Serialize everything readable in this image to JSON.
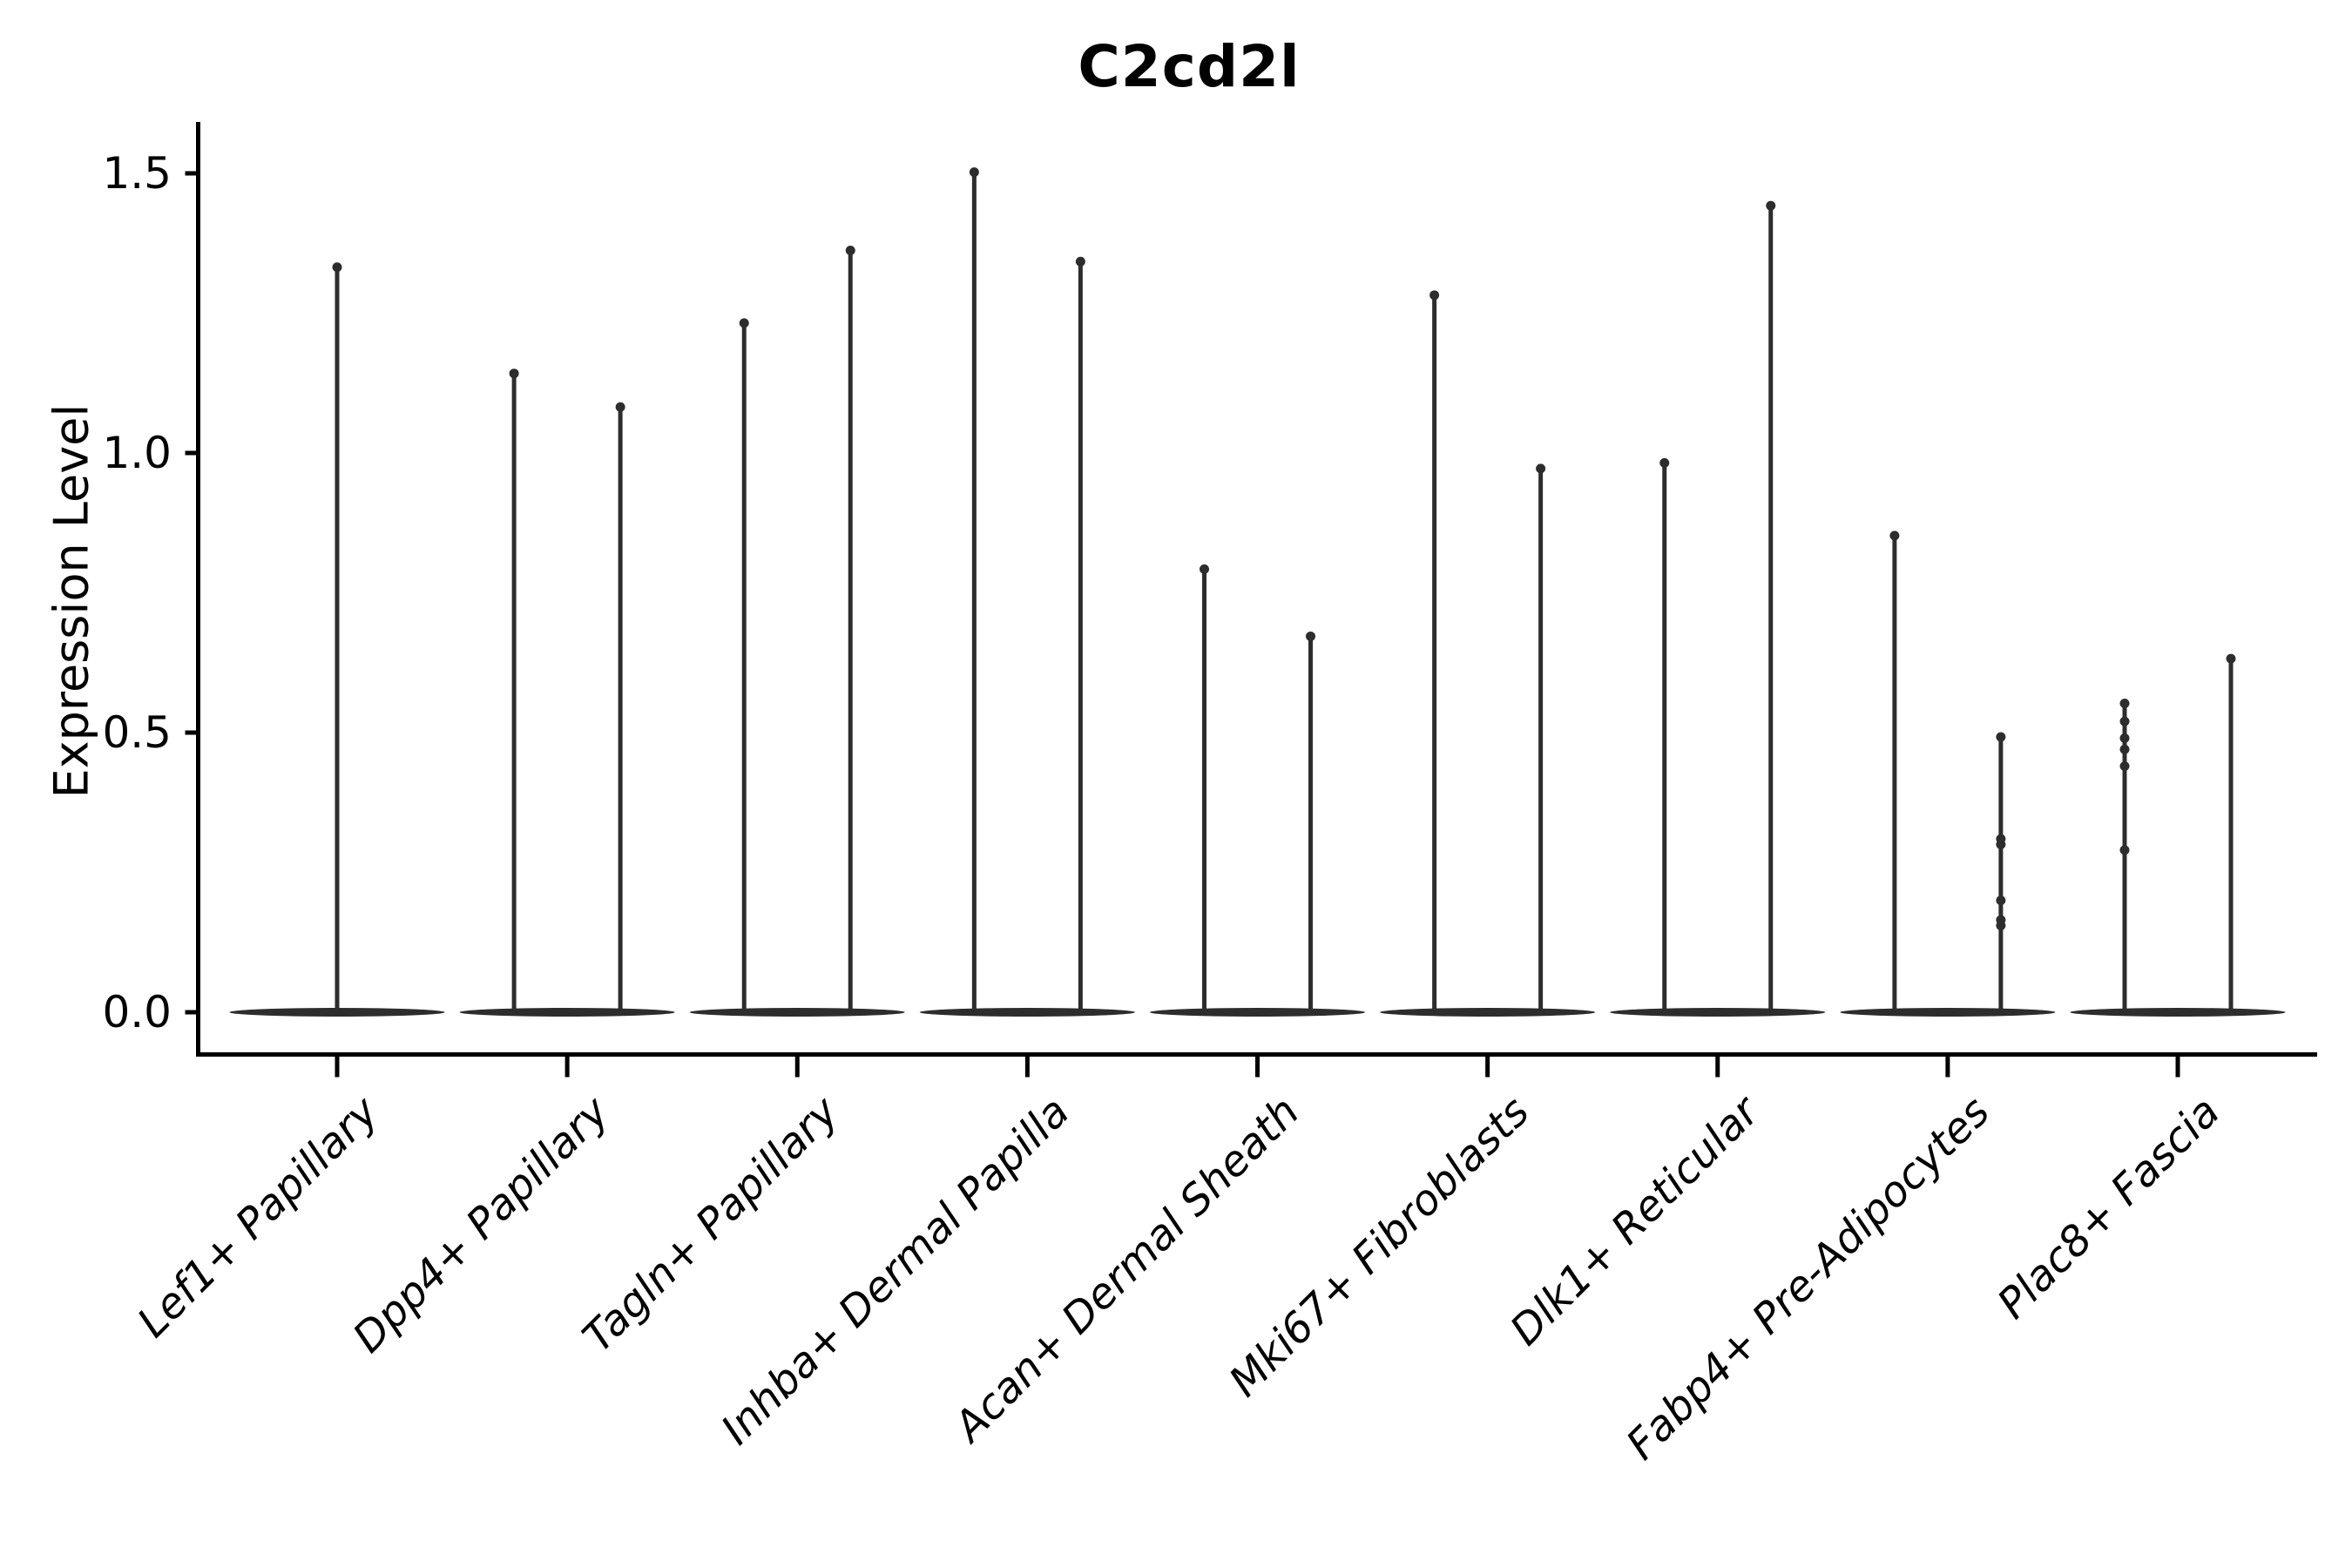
{
  "title": "C2cd2l",
  "y_axis": {
    "label": "Expression Level",
    "tick_labels": [
      "0.0",
      "0.5",
      "1.0",
      "1.5"
    ],
    "tick_values": [
      0.0,
      0.5,
      1.0,
      1.5
    ]
  },
  "colors": {
    "violin": "#2d2d2d",
    "axis": "#000000",
    "text": "#000000",
    "background": "#ffffff"
  },
  "chart_data": {
    "type": "violin",
    "title": "C2cd2l",
    "xlabel": "",
    "ylabel": "Expression Level",
    "ylim": [
      -0.075,
      1.59
    ],
    "yticks": [
      0.0,
      0.5,
      1.0,
      1.5
    ],
    "legend": "none",
    "grid": false,
    "shape_note": "Each violin has nearly all density at expression 0 (wide flat base on the zero line) with an extremely thin spike rising to the maximum expression value; groups 2-9 contain two violins each, group 1 a single centered violin; a few violins show small jitter-point knots along the spike.",
    "categories": [
      "Lef1+ Papillary",
      "Dpp4+ Papillary",
      "Tagln+ Papillary",
      "Inhba+ Dermal Papilla",
      "Acan+ Dermal Sheath",
      "Mki67+ Fibroblasts",
      "Dlk1+ Reticular",
      "Fabp4+ Pre-Adipocytes",
      "Plac8+ Fascia"
    ],
    "groups": [
      {
        "label": "Lef1+ Papillary",
        "violin_maxima": [
          1.34
        ],
        "jitter_dots": [
          []
        ]
      },
      {
        "label": "Dpp4+ Papillary",
        "violin_maxima": [
          1.15,
          1.09
        ],
        "jitter_dots": [
          [],
          []
        ]
      },
      {
        "label": "Tagln+ Papillary",
        "violin_maxima": [
          1.24,
          1.37
        ],
        "jitter_dots": [
          [],
          []
        ]
      },
      {
        "label": "Inhba+ Dermal Papilla",
        "violin_maxima": [
          1.51,
          1.35
        ],
        "jitter_dots": [
          [],
          []
        ]
      },
      {
        "label": "Acan+ Dermal Sheath",
        "violin_maxima": [
          0.8,
          0.68
        ],
        "jitter_dots": [
          [],
          []
        ]
      },
      {
        "label": "Mki67+ Fibroblasts",
        "violin_maxima": [
          1.29,
          0.98
        ],
        "jitter_dots": [
          [],
          []
        ]
      },
      {
        "label": "Dlk1+ Reticular",
        "violin_maxima": [
          0.99,
          1.45
        ],
        "jitter_dots": [
          [],
          []
        ]
      },
      {
        "label": "Fabp4+ Pre-Adipocytes",
        "violin_maxima": [
          0.86,
          0.5
        ],
        "jitter_dots": [
          [],
          [
            0.31,
            0.3,
            0.2,
            0.165,
            0.155
          ]
        ]
      },
      {
        "label": "Plac8+ Fascia",
        "violin_maxima": [
          0.56,
          0.64
        ],
        "jitter_dots": [
          [
            0.52,
            0.49,
            0.47,
            0.44,
            0.29
          ],
          []
        ]
      }
    ]
  }
}
